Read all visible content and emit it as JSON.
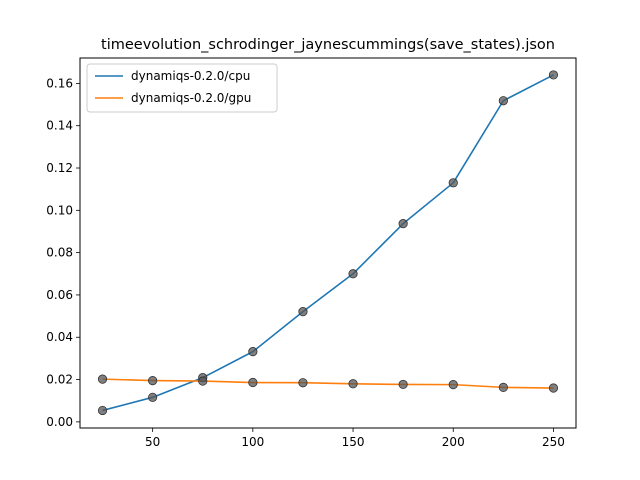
{
  "chart_data": {
    "type": "line",
    "title": "timeevolution_schrodinger_jaynescummings(save_states).json",
    "xlabel": "",
    "ylabel": "",
    "x": [
      25,
      50,
      75,
      100,
      125,
      150,
      175,
      200,
      225,
      250
    ],
    "xlim": [
      13.75,
      261.25
    ],
    "ylim": [
      -0.0029,
      0.172
    ],
    "xticks": [
      50,
      100,
      150,
      200,
      250
    ],
    "yticks": [
      0.0,
      0.02,
      0.04,
      0.06,
      0.08,
      0.1,
      0.12,
      0.14,
      0.16
    ],
    "ytick_labels": [
      "0.00",
      "0.02",
      "0.04",
      "0.06",
      "0.08",
      "0.10",
      "0.12",
      "0.14",
      "0.16"
    ],
    "grid": false,
    "legend_position": "top-left",
    "marker_color": "#555555",
    "series": [
      {
        "name": "dynamiqs-0.2.0/cpu",
        "color": "#1f77b4",
        "values": [
          0.0054,
          0.0116,
          0.0209,
          0.0332,
          0.0521,
          0.07,
          0.0937,
          0.113,
          0.1518,
          0.164
        ]
      },
      {
        "name": "dynamiqs-0.2.0/gpu",
        "color": "#ff7f0e",
        "values": [
          0.0202,
          0.0195,
          0.0193,
          0.0186,
          0.0185,
          0.018,
          0.0177,
          0.0176,
          0.0163,
          0.016
        ]
      }
    ]
  }
}
